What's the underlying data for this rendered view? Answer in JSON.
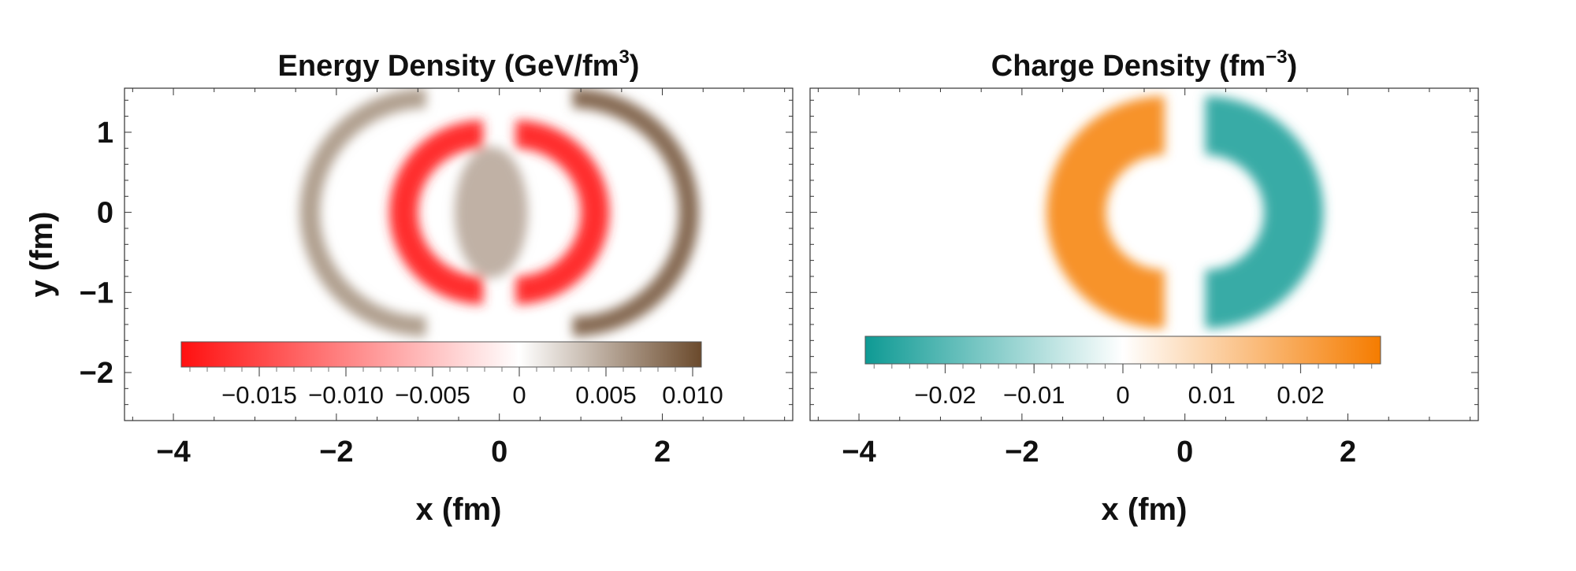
{
  "chart_data": [
    {
      "type": "heatmap",
      "title": "Energy Density (GeV/fm",
      "title_sup": "3",
      "title_close": ")",
      "xlabel": "x (fm)",
      "ylabel": "y (fm)",
      "xlim": [
        -4.6,
        3.6
      ],
      "ylim": [
        -2.6,
        1.55
      ],
      "xticks": [
        "−4",
        "−2",
        "0",
        "2"
      ],
      "xtick_values": [
        -4,
        -2,
        0,
        2
      ],
      "yticks": [
        "1",
        "0",
        "−1",
        "−2"
      ],
      "ytick_values": [
        1,
        0,
        -1,
        -2
      ],
      "grid": false,
      "colorbar": {
        "range": [
          -0.0195,
          0.0105
        ],
        "colors": [
          "#ff1010",
          "#ffffff",
          "#6b4a2c"
        ],
        "mid": 0,
        "tick_labels": [
          "−0.015",
          "−0.010",
          "−0.005",
          "0",
          "0.005",
          "0.010"
        ],
        "tick_values": [
          -0.015,
          -0.01,
          -0.005,
          0,
          0.005,
          0.01
        ]
      },
      "features": [
        {
          "shape": "crescent",
          "side": "left",
          "center": [
            -0.9,
            0
          ],
          "outer_radius": 1.55,
          "inner_radius": 1.3,
          "value": 0.0055
        },
        {
          "shape": "crescent",
          "side": "right",
          "center": [
            0.9,
            0
          ],
          "outer_radius": 1.55,
          "inner_radius": 1.3,
          "value": 0.0085
        },
        {
          "shape": "crescent",
          "side": "left",
          "center": [
            -0.2,
            0
          ],
          "outer_radius": 1.15,
          "inner_radius": 0.8,
          "value": -0.017
        },
        {
          "shape": "crescent",
          "side": "right",
          "center": [
            0.2,
            0
          ],
          "outer_radius": 1.15,
          "inner_radius": 0.8,
          "value": -0.017
        },
        {
          "shape": "ellipse",
          "center": [
            -0.1,
            0
          ],
          "rx": 0.45,
          "ry": 0.82,
          "value": 0.0045
        }
      ]
    },
    {
      "type": "heatmap",
      "title": "Charge Density (fm",
      "title_sup": "−3",
      "title_close": ")",
      "xlabel": "x (fm)",
      "xlim": [
        -4.6,
        3.6
      ],
      "ylim": [
        -2.6,
        1.55
      ],
      "xticks": [
        "−4",
        "−2",
        "0",
        "2"
      ],
      "xtick_values": [
        -4,
        -2,
        0,
        2
      ],
      "grid": false,
      "colorbar": {
        "range": [
          -0.029,
          0.029
        ],
        "colors": [
          "#0e9a94",
          "#ffffff",
          "#f57c00"
        ],
        "mid": 0,
        "tick_labels": [
          "−0.02",
          "−0.01",
          "0",
          "0.01",
          "0.02"
        ],
        "tick_values": [
          -0.02,
          -0.01,
          0,
          0.01,
          0.02
        ]
      },
      "features": [
        {
          "shape": "crescent",
          "side": "left",
          "center": [
            -0.25,
            0
          ],
          "outer_radius": 1.45,
          "inner_radius": 0.72,
          "value": 0.024
        },
        {
          "shape": "crescent",
          "side": "right",
          "center": [
            0.25,
            0
          ],
          "outer_radius": 1.45,
          "inner_radius": 0.72,
          "value": -0.024
        }
      ]
    }
  ]
}
